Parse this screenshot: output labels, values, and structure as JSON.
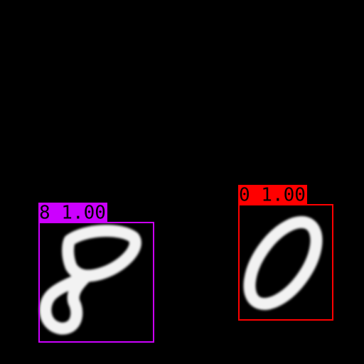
{
  "detections": [
    {
      "label": "8 1.00",
      "color": "#cc00ff"
    },
    {
      "label": "0 1.00",
      "color": "#ff0000"
    }
  ]
}
